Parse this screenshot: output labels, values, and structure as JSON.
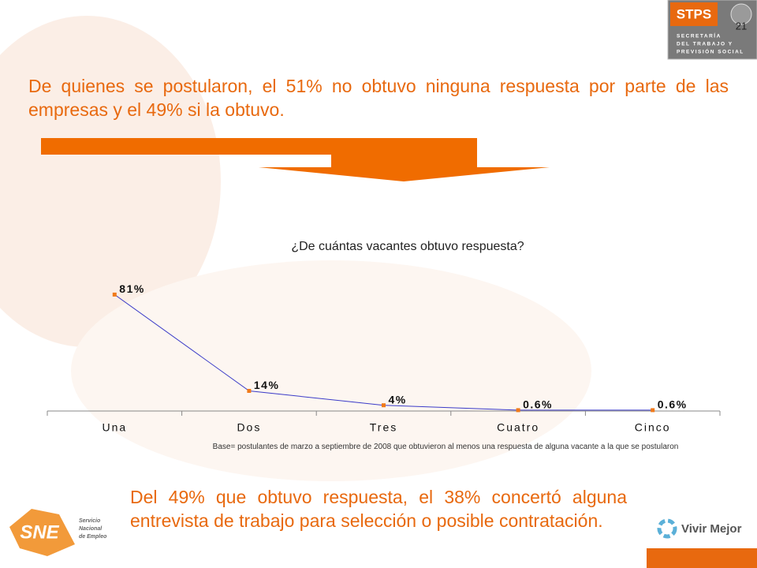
{
  "header": {
    "logo": "STPS",
    "agency": [
      "SECRETARÍA",
      "DEL TRABAJO Y",
      "PREVISIÓN SOCIAL"
    ],
    "page": "21"
  },
  "headline": "De quienes se postularon, el 51% no obtuvo ninguna respuesta por parte de las empresas y el 49% si la obtuvo.",
  "chart_data": {
    "type": "line",
    "title": "¿De cuántas vacantes obtuvo respuesta?",
    "categories": [
      "Una",
      "Dos",
      "Tres",
      "Cuatro",
      "Cinco"
    ],
    "values": [
      81,
      14,
      4,
      0.6,
      0.6
    ],
    "value_labels": [
      "81%",
      "14%",
      "4%",
      "0.6%",
      "0.6%"
    ],
    "color": "#3b3bc8",
    "marker_color": "#f07a1a",
    "ylim": [
      0,
      90
    ],
    "note": "Base= postulantes de marzo a septiembre de 2008 que obtuvieron al menos una respuesta de alguna vacante a la que se postularon"
  },
  "body": "Del 49% que obtuvo respuesta, el 38% concertó alguna entrevista de trabajo para selección o posible contratación.",
  "footer": {
    "left_logo": "SNE",
    "left_logo_text": [
      "Servicio",
      "Nacional",
      "de Empleo"
    ],
    "right_logo": "Vivir Mejor"
  }
}
